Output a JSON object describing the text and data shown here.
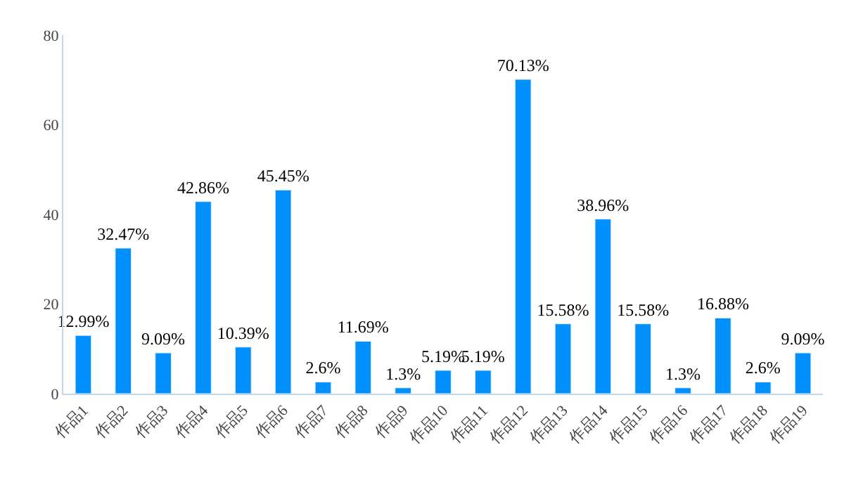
{
  "chart_data": {
    "type": "bar",
    "categories": [
      "作品1",
      "作品2",
      "作品3",
      "作品4",
      "作品5",
      "作品6",
      "作品7",
      "作品8",
      "作品9",
      "作品10",
      "作品11",
      "作品12",
      "作品13",
      "作品14",
      "作品15",
      "作品16",
      "作品17",
      "作品18",
      "作品19"
    ],
    "values": [
      12.99,
      32.47,
      9.09,
      42.86,
      10.39,
      45.45,
      2.6,
      11.69,
      1.3,
      5.19,
      5.19,
      70.13,
      15.58,
      38.96,
      15.58,
      1.3,
      16.88,
      2.6,
      9.09
    ],
    "value_labels": [
      "12.99%",
      "32.47%",
      "9.09%",
      "42.86%",
      "10.39%",
      "45.45%",
      "2.6%",
      "11.69%",
      "1.3%",
      "5.19%",
      "5.19%",
      "70.13%",
      "15.58%",
      "38.96%",
      "15.58%",
      "1.3%",
      "16.88%",
      "2.6%",
      "9.09%"
    ],
    "color": "#0091ff",
    "ylim": [
      0,
      80
    ],
    "yticks": [
      0,
      20,
      40,
      60,
      80
    ],
    "grid": false
  }
}
